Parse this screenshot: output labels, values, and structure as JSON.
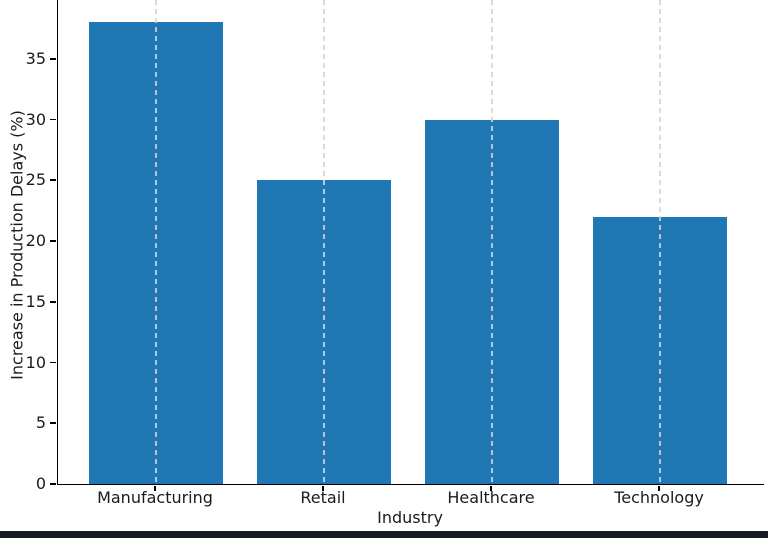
{
  "chart_data": {
    "type": "bar",
    "title": "",
    "categories": [
      "Manufacturing",
      "Retail",
      "Healthcare",
      "Technology"
    ],
    "values": [
      38,
      25,
      30,
      22
    ],
    "xlabel": "Industry",
    "ylabel": "Increase in Production Delays (%)",
    "yticks": [
      0,
      5,
      10,
      15,
      20,
      25,
      30,
      35
    ],
    "ylim": [
      0,
      39.9
    ],
    "grid": "vertical-dashed",
    "legend": "none",
    "bar_color": "#1f77b4"
  },
  "colors": {
    "bar": "#1f77b4",
    "grid": "#d4d4d4",
    "axis": "#000000",
    "text": "#1b1b1b",
    "background": "#ffffff",
    "bottom_strip": "#151a24"
  }
}
